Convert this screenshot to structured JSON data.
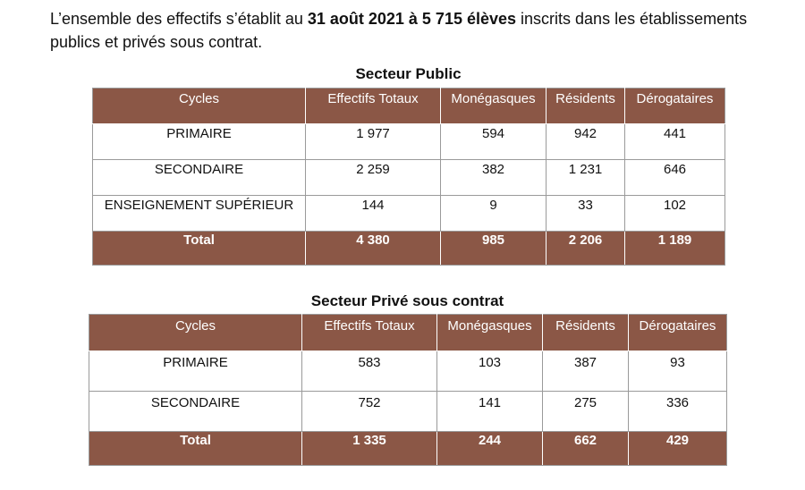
{
  "intro": {
    "part1": "L’ensemble des effectifs s’établit au ",
    "bold": "31 août 2021 à 5 715 élèves",
    "part2": " inscrits dans les établissements publics et privés sous contrat."
  },
  "columns": [
    "Cycles",
    "Effectifs Totaux",
    "Monégasques",
    "Résidents",
    "Dérogataires"
  ],
  "public": {
    "title": "Secteur Public",
    "rows": [
      [
        "PRIMAIRE",
        "1 977",
        "594",
        "942",
        "441"
      ],
      [
        "SECONDAIRE",
        "2 259",
        "382",
        "1 231",
        "646"
      ],
      [
        "ENSEIGNEMENT SUPÉRIEUR",
        "144",
        "9",
        "33",
        "102"
      ]
    ],
    "total": [
      "Total",
      "4 380",
      "985",
      "2 206",
      "1 189"
    ]
  },
  "private": {
    "title": "Secteur Privé sous contrat",
    "rows": [
      [
        "PRIMAIRE",
        "583",
        "103",
        "387",
        "93"
      ],
      [
        "SECONDAIRE",
        "752",
        "141",
        "275",
        "336"
      ]
    ],
    "total": [
      "Total",
      "1 335",
      "244",
      "662",
      "429"
    ]
  },
  "colors": {
    "header_bg": "#8b5746",
    "header_text": "#ffffff"
  }
}
